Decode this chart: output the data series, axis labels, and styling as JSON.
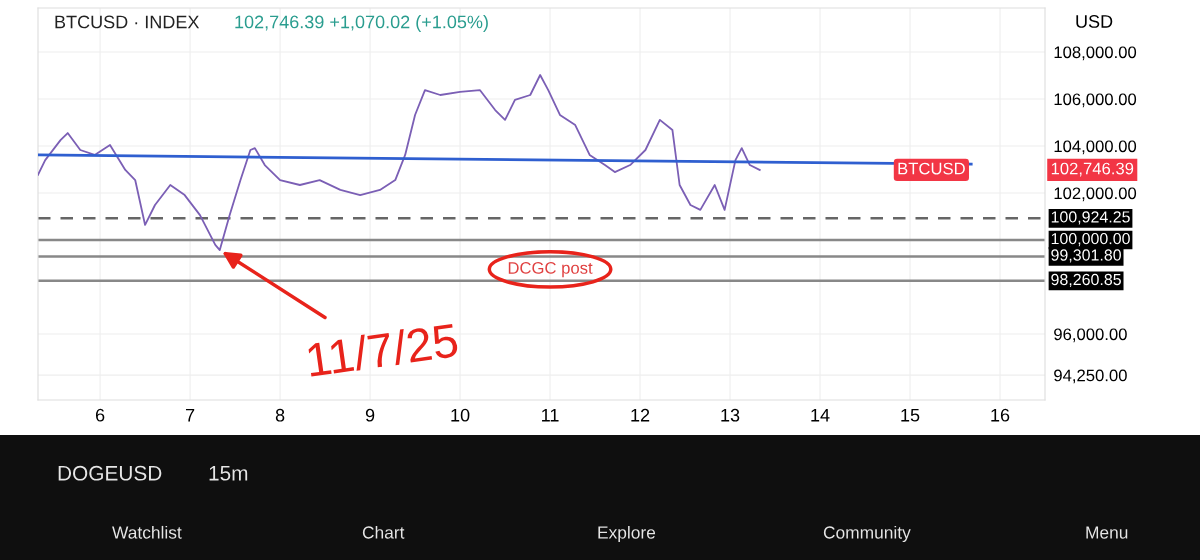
{
  "chart_data": {
    "type": "line",
    "title": "BTCUSD · INDEX",
    "subtitle": "102,746.39 +1,070.02 (+1.05%)",
    "xlim": [
      5.31,
      16.5
    ],
    "xticks": [
      6,
      7,
      8,
      9,
      10,
      11,
      12,
      13,
      14,
      15,
      16
    ],
    "ylim": [
      93191,
      109872
    ],
    "yticks": [
      {
        "value": 94250,
        "label": "94,250.00"
      },
      {
        "value": 96000,
        "label": "96,000.00"
      },
      {
        "value": 102000,
        "label": "102,000.00"
      },
      {
        "value": 104000,
        "label": "104,000.00"
      },
      {
        "value": 106000,
        "label": "106,000.00"
      },
      {
        "value": 108000,
        "label": "108,000.00"
      }
    ],
    "grid": true,
    "legend": false,
    "marker": "none",
    "line_style": "solid",
    "series": [
      {
        "color": "#7b5fb5",
        "x": [
          5.31,
          5.39,
          5.56,
          5.64,
          5.78,
          5.94,
          6.11,
          6.28,
          6.39,
          6.5,
          6.61,
          6.78,
          6.94,
          7.11,
          7.28,
          7.33,
          7.44,
          7.56,
          7.67,
          7.72,
          7.83,
          8.0,
          8.22,
          8.44,
          8.67,
          8.89,
          9.11,
          9.28,
          9.39,
          9.5,
          9.61,
          9.78,
          10.0,
          10.22,
          10.39,
          10.5,
          10.61,
          10.78,
          10.89,
          10.98,
          11.11,
          11.28,
          11.44,
          11.61,
          11.72,
          11.89,
          12.06,
          12.22,
          12.36,
          12.44,
          12.56,
          12.67,
          12.83,
          12.94,
          13.06,
          13.13,
          13.22,
          13.33
        ],
        "values": [
          102770,
          103400,
          104250,
          104550,
          103830,
          103620,
          104040,
          102980,
          102550,
          100640,
          101490,
          102340,
          101910,
          101060,
          99790,
          99570,
          101060,
          102550,
          103830,
          103910,
          103190,
          102550,
          102340,
          102550,
          102130,
          101910,
          102130,
          102550,
          103620,
          105320,
          106380,
          106170,
          106300,
          106380,
          105530,
          105110,
          105960,
          106170,
          107020,
          106380,
          105320,
          104890,
          103620,
          103190,
          102890,
          103190,
          103830,
          105110,
          104680,
          102340,
          101490,
          101280,
          102340,
          101280,
          103400,
          103910,
          103190,
          102980
        ]
      },
      {
        "color": "#2f5fd0",
        "x": [
          5.31,
          15.68
        ],
        "values": [
          103620,
          103230
        ]
      }
    ],
    "ref_lines": [
      {
        "axis": "y",
        "value": 100924.25,
        "label": "100,924.25",
        "color": "#666666",
        "line_style": "dashed"
      },
      {
        "axis": "y",
        "value": 100000,
        "label": "100,000.00",
        "color": "#888888",
        "line_style": "solid"
      },
      {
        "axis": "y",
        "value": 99301.8,
        "label": "99,301.80",
        "color": "#888888",
        "line_style": "solid"
      },
      {
        "axis": "y",
        "value": 98260.85,
        "label": "98,260.85",
        "color": "#888888",
        "line_style": "solid"
      }
    ],
    "annotations": [
      "BTCUSD",
      "102,746.39",
      {
        "text": "11/7/25",
        "x": 7.33,
        "y": 99570
      },
      "DCGC post",
      "USD",
      "DOGEUSD",
      "15m",
      "Watchlist",
      "Chart",
      "Explore",
      "Community",
      "Menu"
    ]
  }
}
